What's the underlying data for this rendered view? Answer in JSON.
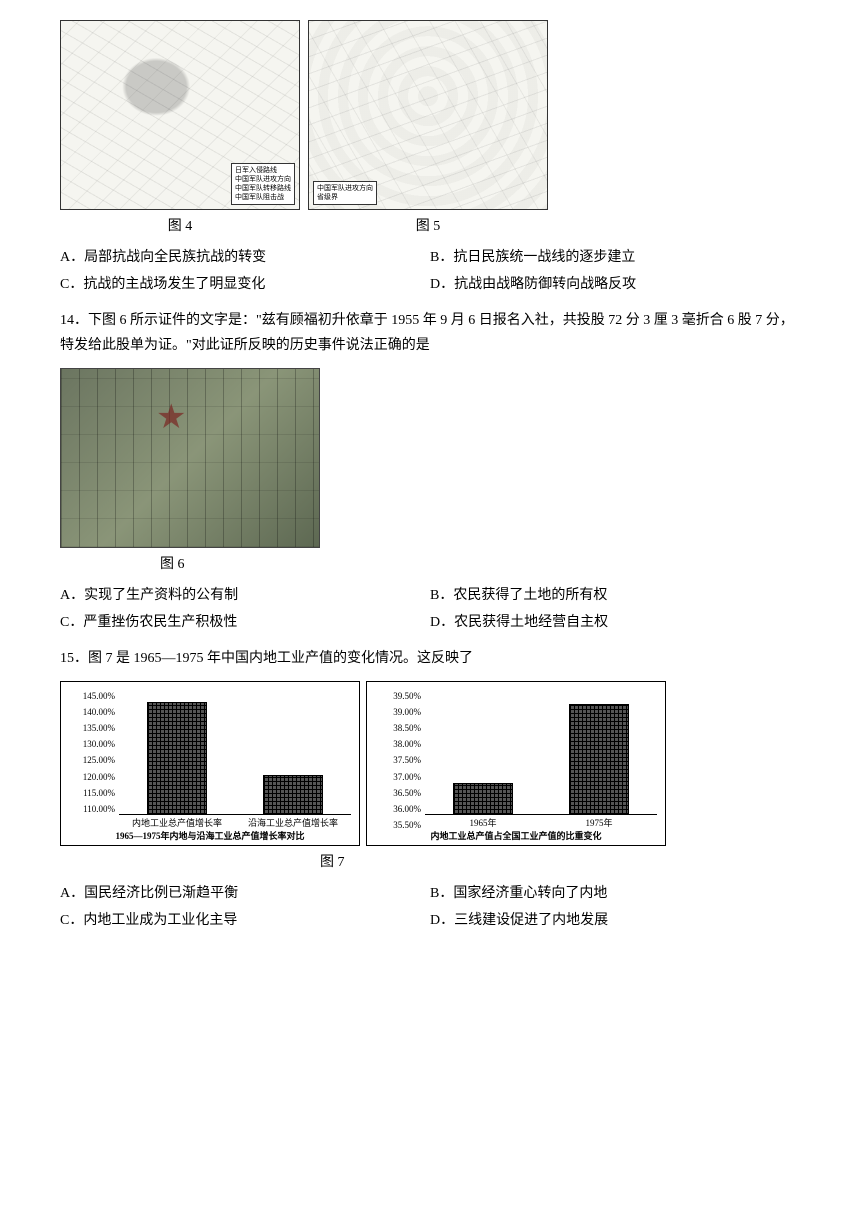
{
  "fig4_5": {
    "caption4": "图 4",
    "caption5": "图 5",
    "legend1_lines": [
      "日军入侵路线",
      "中国军队进攻方向",
      "中国军队转移路线",
      "中国军队阻击战"
    ],
    "legend2_lines": [
      "中国军队进攻方向",
      "省级界"
    ]
  },
  "q13_options": {
    "A": "A．局部抗战向全民族抗战的转变",
    "B": "B．抗日民族统一战线的逐步建立",
    "C": "C．抗战的主战场发生了明显变化",
    "D": "D．抗战由战略防御转向战略反攻"
  },
  "q14": {
    "text": "14．下图 6 所示证件的文字是：\"兹有顾福初升依章于 1955 年 9 月 6 日报名入社，共投股 72 分 3 厘 3 毫折合 6 股 7 分，特发给此股单为证。\"对此证所反映的历史事件说法正确的是",
    "caption": "图 6",
    "options": {
      "A": "A．实现了生产资料的公有制",
      "B": "B．农民获得了土地的所有权",
      "C": "C．严重挫伤农民生产积极性",
      "D": "D．农民获得土地经营自主权"
    }
  },
  "q15": {
    "text": "15．图 7 是 1965—1975 年中国内地工业产值的变化情况。这反映了",
    "caption": "图 7",
    "chartA": {
      "yticks": [
        "145.00%",
        "140.00%",
        "135.00%",
        "130.00%",
        "125.00%",
        "120.00%",
        "115.00%",
        "110.00%"
      ],
      "xlabels": [
        "内地工业总产值增长率",
        "沿海工业总产值增长率"
      ],
      "values": [
        141,
        121
      ],
      "ylim": [
        110,
        145
      ],
      "title": "1965—1975年内地与沿海工业总产值增长率对比"
    },
    "chartB": {
      "yticks": [
        "39.50%",
        "39.00%",
        "38.50%",
        "38.00%",
        "37.50%",
        "37.00%",
        "36.50%",
        "36.00%",
        "35.50%"
      ],
      "xlabels": [
        "1965年",
        "1975年"
      ],
      "values": [
        36.5,
        39.0
      ],
      "ylim": [
        35.5,
        39.5
      ],
      "title": "内地工业总产值占全国工业产值的比重变化"
    },
    "options": {
      "A": "A．国民经济比例已渐趋平衡",
      "B": "B．国家经济重心转向了内地",
      "C": "C．内地工业成为工业化主导",
      "D": "D．三线建设促进了内地发展"
    }
  }
}
